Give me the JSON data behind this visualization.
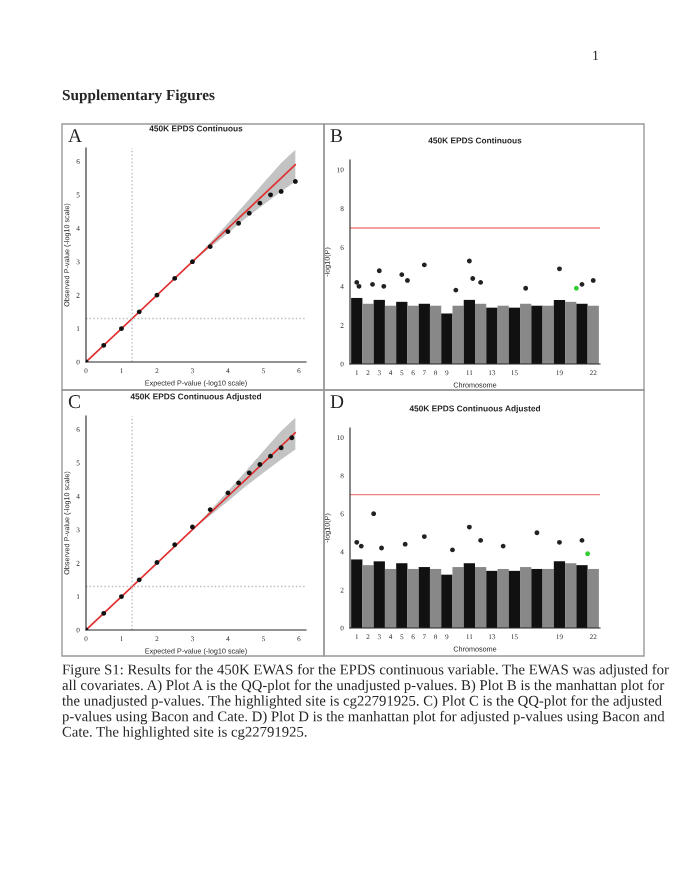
{
  "chart_data": [
    {
      "type": "scatter",
      "title": "450K EPDS Continuous",
      "xlabel": "Expected P-value (-log10 scale)",
      "ylabel": "Observed P-value (-log10 scale)",
      "annotations": [
        "1",
        "Supplementary Figures",
        "A"
      ],
      "xlim": [
        0,
        6.2
      ],
      "ylim": [
        0,
        6.4
      ],
      "xticks": [
        0,
        1,
        2,
        3,
        4,
        5,
        6
      ],
      "yticks": [
        0,
        1,
        2,
        3,
        4,
        5,
        6
      ],
      "grid": false,
      "legend": false,
      "marker": "circle",
      "ref_lines": [
        {
          "axis": "x",
          "value": 1.3,
          "label": null,
          "color": "#bbbbbb",
          "line_style": "dotted"
        },
        {
          "axis": "y",
          "value": 1.3,
          "label": null,
          "color": "#bbbbbb",
          "line_style": "dotted"
        }
      ],
      "series": [
        {
          "type": "line",
          "marker": "none",
          "color": "#e03030",
          "x": [
            0,
            1,
            2,
            3,
            4,
            4.5,
            5,
            5.5,
            5.9
          ],
          "values": [
            0,
            1,
            2,
            3,
            4,
            4.5,
            5,
            5.5,
            5.9
          ],
          "lower": [
            0,
            1,
            2,
            3,
            3.85,
            4.3,
            4.7,
            5.1,
            5.4
          ],
          "upper": [
            0,
            1,
            2,
            3,
            4.15,
            4.75,
            5.35,
            5.95,
            6.35
          ]
        },
        {
          "color": "#111111",
          "x": [
            0,
            0.5,
            1,
            1.5,
            2,
            2.5,
            3,
            3.5,
            4,
            4.3,
            4.6,
            4.9,
            5.2,
            5.5,
            5.9
          ],
          "values": [
            0,
            0.5,
            1,
            1.5,
            2,
            2.5,
            3,
            3.45,
            3.9,
            4.15,
            4.45,
            4.75,
            5.0,
            5.1,
            5.4
          ]
        }
      ]
    },
    {
      "type": "scatter",
      "title": "450K EPDS Continuous",
      "xlabel": "Chromosome",
      "ylabel": "-log10(P)",
      "annotations": [
        "B"
      ],
      "xlim": [
        0.4,
        22.6
      ],
      "ylim": [
        0,
        10.5
      ],
      "xticks": [
        1,
        2,
        3,
        4,
        5,
        6,
        7,
        8,
        9,
        11,
        13,
        15,
        19,
        22
      ],
      "yticks": [
        0,
        2,
        4,
        6,
        8,
        10
      ],
      "grid": false,
      "legend": false,
      "marker": "circle",
      "ref_lines": [
        {
          "axis": "y",
          "value": 7,
          "label": null,
          "color": "#f08080",
          "line_style": "solid"
        }
      ],
      "series": [
        {
          "type": "bar",
          "x": [
            1,
            2,
            3,
            4,
            5,
            6,
            7,
            8,
            9,
            10,
            11,
            12,
            13,
            14,
            15,
            16,
            17,
            18,
            19,
            20,
            21,
            22
          ],
          "values": [
            3.4,
            3.1,
            3.3,
            3.0,
            3.2,
            3.0,
            3.1,
            3.0,
            2.6,
            3.0,
            3.3,
            3.1,
            2.9,
            3.0,
            2.9,
            3.1,
            3.0,
            3.0,
            3.3,
            3.2,
            3.1,
            3.0
          ],
          "colors": [
            "#111111",
            "#888888",
            "#111111",
            "#888888",
            "#111111",
            "#888888",
            "#111111",
            "#888888",
            "#111111",
            "#888888",
            "#111111",
            "#888888",
            "#111111",
            "#888888",
            "#111111",
            "#888888",
            "#111111",
            "#888888",
            "#111111",
            "#888888",
            "#111111",
            "#888888"
          ]
        },
        {
          "color": "#222222",
          "x": [
            1,
            1.2,
            2.4,
            3,
            3.4,
            5,
            5.5,
            7,
            9.8,
            11,
            11.3,
            12,
            16,
            19,
            21,
            22
          ],
          "values": [
            4.2,
            4.0,
            4.1,
            4.8,
            4.0,
            4.6,
            4.3,
            5.1,
            3.8,
            5.3,
            4.4,
            4.2,
            3.9,
            4.9,
            4.1,
            4.3
          ]
        },
        {
          "color": "#33cc33",
          "x": [
            20.5
          ],
          "values": [
            3.9
          ]
        }
      ]
    },
    {
      "type": "scatter",
      "title": "450K EPDS Continuous Adjusted",
      "xlabel": "Expected P-value (-log10 scale)",
      "ylabel": "Observed P-value (-log10 scale)",
      "annotations": [
        "C"
      ],
      "xlim": [
        0,
        6.2
      ],
      "ylim": [
        0,
        6.4
      ],
      "xticks": [
        0,
        1,
        2,
        3,
        4,
        5,
        6
      ],
      "yticks": [
        0,
        1,
        2,
        3,
        4,
        5,
        6
      ],
      "grid": false,
      "legend": false,
      "marker": "circle",
      "ref_lines": [
        {
          "axis": "x",
          "value": 1.3,
          "label": null,
          "color": "#bbbbbb",
          "line_style": "dotted"
        },
        {
          "axis": "y",
          "value": 1.3,
          "label": null,
          "color": "#bbbbbb",
          "line_style": "dotted"
        }
      ],
      "series": [
        {
          "type": "line",
          "marker": "none",
          "color": "#e03030",
          "x": [
            0,
            1,
            2,
            3,
            4,
            4.5,
            5,
            5.5,
            5.9
          ],
          "values": [
            0,
            1,
            2,
            3,
            4,
            4.5,
            5,
            5.5,
            5.9
          ],
          "lower": [
            0,
            1,
            2,
            3,
            3.85,
            4.3,
            4.7,
            5.1,
            5.4
          ],
          "upper": [
            0,
            1,
            2,
            3,
            4.15,
            4.75,
            5.35,
            5.95,
            6.35
          ]
        },
        {
          "color": "#111111",
          "x": [
            0,
            0.5,
            1,
            1.5,
            2,
            2.5,
            3,
            3.5,
            4,
            4.3,
            4.6,
            4.9,
            5.2,
            5.5,
            5.8
          ],
          "values": [
            0,
            0.5,
            1,
            1.5,
            2.02,
            2.55,
            3.08,
            3.6,
            4.1,
            4.4,
            4.7,
            4.95,
            5.2,
            5.45,
            5.75
          ]
        }
      ]
    },
    {
      "type": "scatter",
      "title": "450K EPDS Continuous Adjusted",
      "xlabel": "Chromosome",
      "ylabel": "-log10(P)",
      "annotations": [
        "Figure S1: Results for the 450K EWAS for the EPDS continuous variable. The EWAS was adjusted for all covariates. A) Plot A is the QQ-plot for the unadjusted p-values. B) Plot B is the manhattan plot for the unadjusted p-values. The highlighted site is cg22791925. C) Plot C is the QQ-plot for the adjusted p-values using Bacon and Cate. D) Plot D is the manhattan plot for adjusted p-values using Bacon and Cate. The highlighted site is cg22791925.",
        "D"
      ],
      "xlim": [
        0.4,
        22.6
      ],
      "ylim": [
        0,
        10.5
      ],
      "xticks": [
        1,
        2,
        3,
        4,
        5,
        6,
        7,
        8,
        9,
        11,
        13,
        15,
        19,
        22
      ],
      "yticks": [
        0,
        2,
        4,
        6,
        8,
        10
      ],
      "grid": false,
      "legend": false,
      "marker": "circle",
      "ref_lines": [
        {
          "axis": "y",
          "value": 7,
          "label": null,
          "color": "#f08080",
          "line_style": "solid"
        }
      ],
      "series": [
        {
          "type": "bar",
          "x": [
            1,
            2,
            3,
            4,
            5,
            6,
            7,
            8,
            9,
            10,
            11,
            12,
            13,
            14,
            15,
            16,
            17,
            18,
            19,
            20,
            21,
            22
          ],
          "values": [
            3.6,
            3.3,
            3.5,
            3.1,
            3.4,
            3.1,
            3.2,
            3.1,
            2.8,
            3.2,
            3.4,
            3.2,
            3.0,
            3.1,
            3.0,
            3.2,
            3.1,
            3.1,
            3.5,
            3.4,
            3.3,
            3.1
          ],
          "colors": [
            "#111111",
            "#888888",
            "#111111",
            "#888888",
            "#111111",
            "#888888",
            "#111111",
            "#888888",
            "#111111",
            "#888888",
            "#111111",
            "#888888",
            "#111111",
            "#888888",
            "#111111",
            "#888888",
            "#111111",
            "#888888",
            "#111111",
            "#888888",
            "#111111",
            "#888888"
          ]
        },
        {
          "color": "#222222",
          "x": [
            1,
            1.4,
            2.5,
            3.2,
            5.3,
            7,
            9.5,
            11,
            12,
            14,
            17,
            19,
            21
          ],
          "values": [
            4.5,
            4.3,
            6.0,
            4.2,
            4.4,
            4.8,
            4.1,
            5.3,
            4.6,
            4.3,
            5.0,
            4.5,
            4.6
          ]
        },
        {
          "color": "#33cc33",
          "x": [
            21.5
          ],
          "values": [
            3.9
          ]
        }
      ]
    }
  ]
}
